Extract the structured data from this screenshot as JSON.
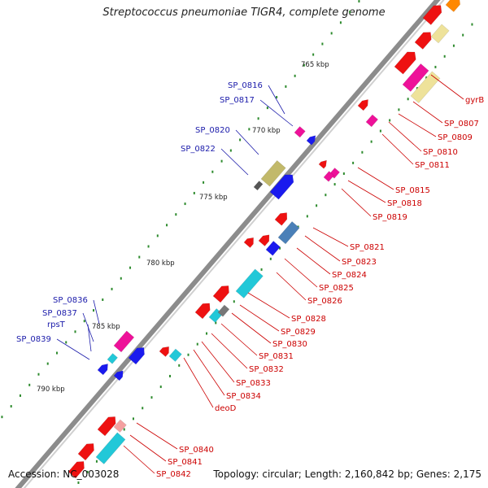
{
  "title": "Streptococcus pneumoniae TIGR4, complete genome",
  "footer": {
    "accession": "Accession: NC_003028",
    "stats": "Topology: circular; Length: 2,160,842 bp; Genes: 2,175"
  },
  "scale_labels": [
    "765 kbp",
    "770 kbp",
    "775 kbp",
    "780 kbp",
    "785 kbp",
    "790 kbp"
  ],
  "gene_labels_left": [
    "SP_0816",
    "SP_0817",
    "SP_0820",
    "SP_0822",
    "SP_0836",
    "SP_0837",
    "rpsT",
    "SP_0839"
  ],
  "gene_labels_right": [
    "gyrB",
    "SP_0807",
    "SP_0809",
    "SP_0810",
    "SP_0811",
    "SP_0815",
    "SP_0818",
    "SP_0819",
    "SP_0821",
    "SP_0823",
    "SP_0824",
    "SP_0825",
    "SP_0826",
    "SP_0828",
    "SP_0829",
    "SP_0830",
    "SP_0831",
    "SP_0832",
    "SP_0833",
    "SP_0834",
    "deoD",
    "SP_0840",
    "SP_0841",
    "SP_0842"
  ],
  "colors": {
    "backbone": "#8c8c8c",
    "label_left": "#1a1aaa",
    "label_right": "#cc0000",
    "tick": "#2e8b2e",
    "gene_red": "#ee1111",
    "gene_blue": "#1a1aee",
    "gene_magenta": "#ee1199",
    "gene_cyan": "#22c8d8",
    "gene_khaki": "#c2b96a",
    "gene_steel": "#4a80b8"
  }
}
